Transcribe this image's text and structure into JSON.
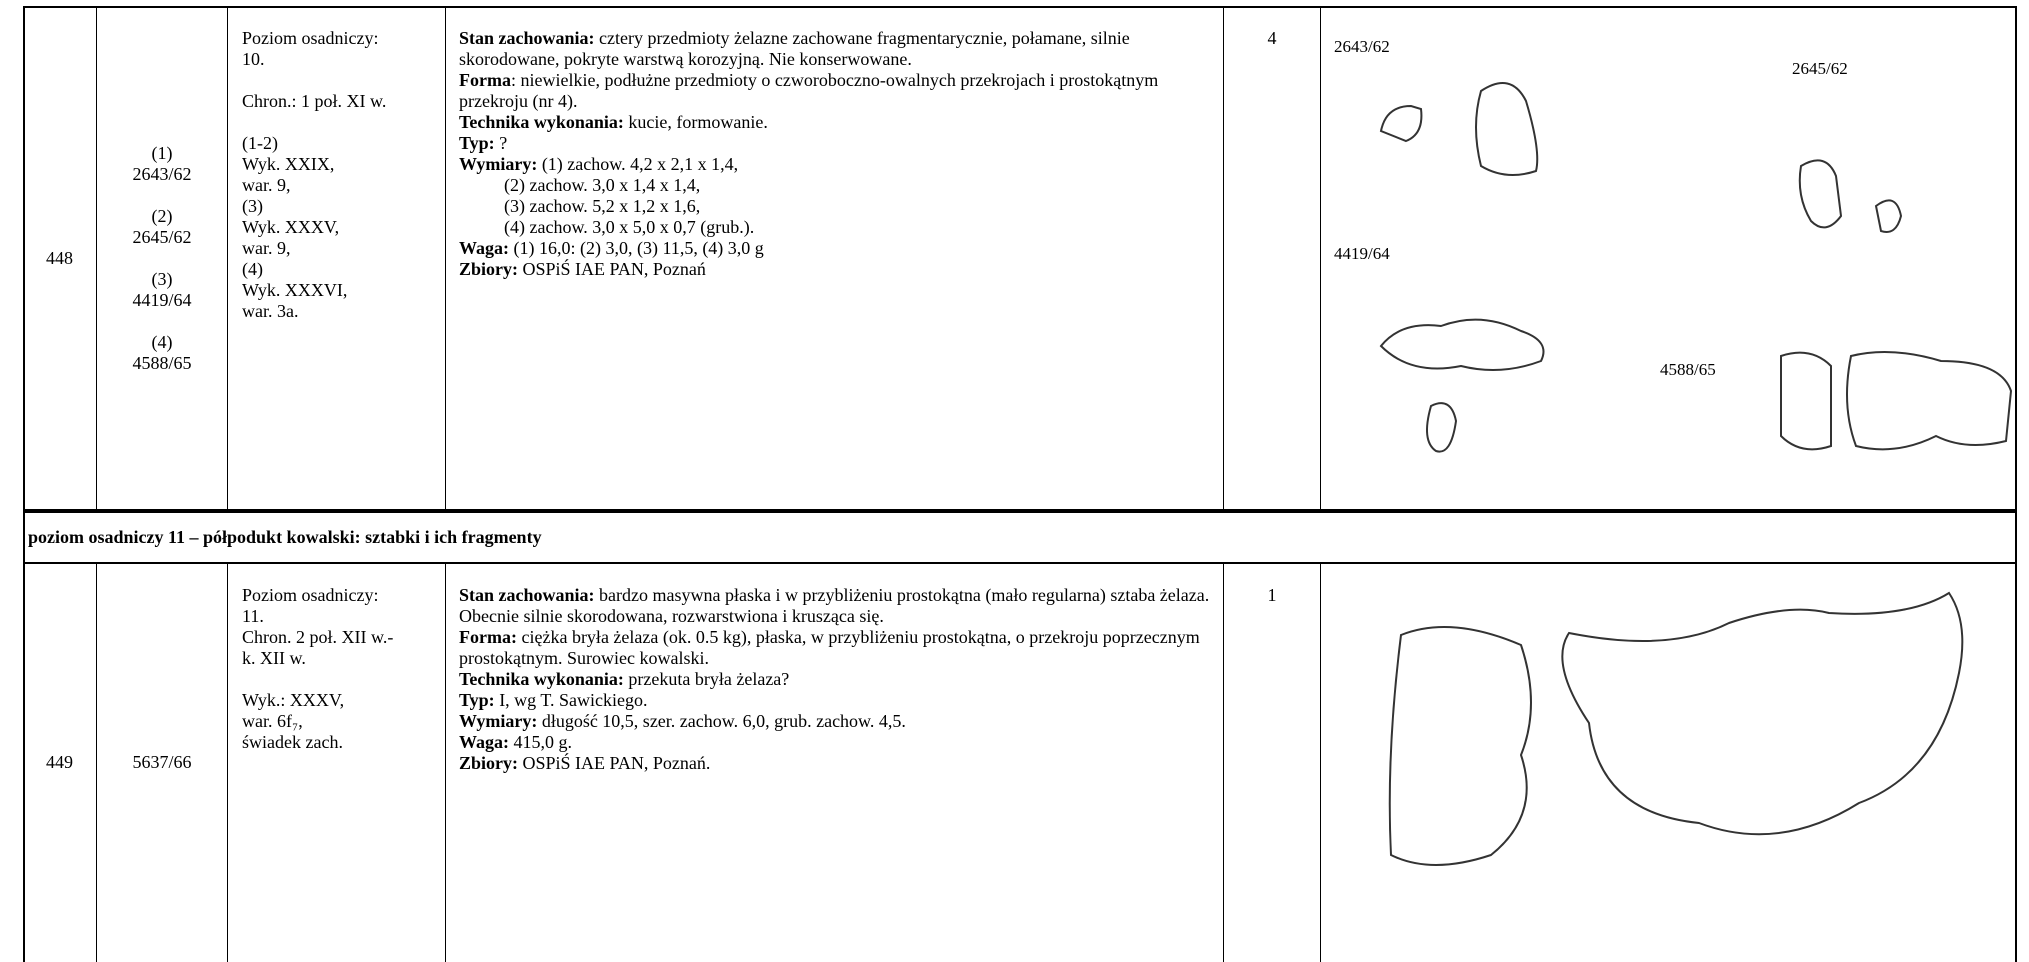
{
  "table": {
    "section": "poziom osadniczy 11 – półpodukt kowalski: sztabki i ich fragmenty",
    "rows": [
      {
        "no": "448",
        "ids": [
          {
            "n": "(1)",
            "id": "2643/62"
          },
          {
            "n": "(2)",
            "id": "2645/62"
          },
          {
            "n": "(3)",
            "id": "4419/64"
          },
          {
            "n": "(4)",
            "id": "4588/65"
          }
        ],
        "context": [
          [
            "Poziom osadniczy:",
            "10."
          ],
          [
            "Chron.: 1 poł. XI w."
          ],
          [
            "(1-2)",
            "Wyk. XXIX,",
            "war. 9,",
            "(3)",
            "Wyk. XXXV,",
            "war. 9,",
            "(4)",
            "Wyk. XXXVI,",
            "war. 3a."
          ]
        ],
        "description": [
          {
            "label": "Stan zachowania:",
            "text": " cztery przedmioty żelazne zachowane fragmentarycznie, połamane, silnie skorodowane, pokryte warstwą korozyjną. Nie konserwowane."
          },
          {
            "label": "Forma",
            "text": ": niewielkie, podłużne przedmioty o czworoboczno-owalnych przekrojach i prostokątnym przekroju (nr 4)."
          },
          {
            "label": "Technika wykonania:",
            "text": " kucie, formowanie."
          },
          {
            "label": "Typ:",
            "text": " ?"
          },
          {
            "label": "Wymiary:",
            "lines": [
              " (1) zachow. 4,2 x 2,1 x 1,4,",
              "(2) zachow. 3,0 x 1,4 x 1,4,",
              "(3) zachow. 5,2 x 1,2 x 1,6,",
              "(4) zachow. 3,0 x 5,0 x 0,7 (grub.)."
            ]
          },
          {
            "label": "Waga:",
            "text": " (1) 16,0: (2) 3,0, (3) 11,5, (4) 3,0 g"
          },
          {
            "label": "Zbiory:",
            "text": " OSPiŚ IAE PAN, Poznań"
          }
        ],
        "count": "4",
        "figure_labels": [
          "2643/62",
          "2645/62",
          "4419/64",
          "4588/65"
        ]
      },
      {
        "no": "449",
        "ids": [
          {
            "id": "5637/66"
          }
        ],
        "context": [
          [
            "Poziom osadniczy:",
            "11.",
            "Chron. 2 poł. XII w.-",
            "k. XII w."
          ],
          [
            "Wyk.: XXXV,",
            "war. 6f₇,",
            "świadek zach."
          ]
        ],
        "description": [
          {
            "label": "Stan zachowania:",
            "text": " bardzo masywna płaska i w przybliżeniu prostokątna (mało regularna) sztaba żelaza. Obecnie silnie skorodowana, rozwarstwiona i krusząca się."
          },
          {
            "label": "Forma:",
            "text": " ciężka bryła żelaza (ok. 0.5 kg), płaska, w przybliżeniu prostokątna, o przekroju poprzecznym prostokątnym. Surowiec kowalski."
          },
          {
            "label": "Technika wykonania:",
            "text": " przekuta bryła żelaza?"
          },
          {
            "label": "Typ:",
            "text": " I, wg T. Sawickiego."
          },
          {
            "label": "Wymiary:",
            "text": " długość 10,5, szer. zachow. 6,0, grub. zachow. 4,5."
          },
          {
            "label": "Waga:",
            "text": " 415,0 g."
          },
          {
            "label": "Zbiory:",
            "text": " OSPiŚ IAE PAN, Poznań."
          }
        ],
        "count": "1"
      }
    ]
  }
}
